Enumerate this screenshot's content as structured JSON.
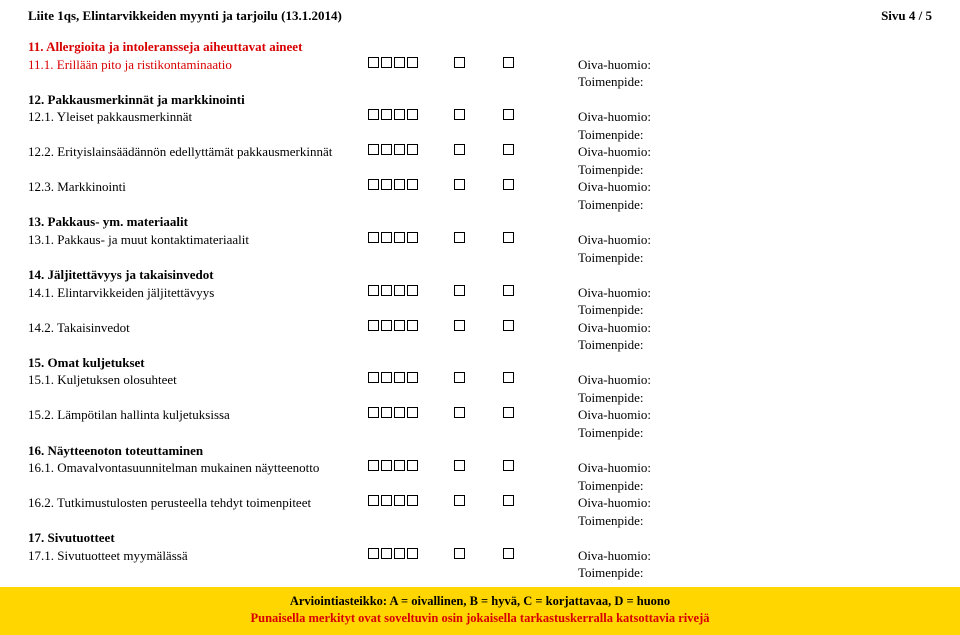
{
  "header": {
    "left": "Liite 1qs, Elintarvikkeiden myynti ja tarjoilu (13.1.2014)",
    "right": "Sivu 4 / 5"
  },
  "labels": {
    "oiva": "Oiva-huomio:",
    "tp": "Toimenpide:"
  },
  "sections": [
    {
      "type": "section",
      "red": true,
      "text": "11. Allergioita ja intoleransseja aiheuttavat aineet"
    },
    {
      "type": "item",
      "red": true,
      "text": "11.1. Erillään pito ja ristikontaminaatio"
    },
    {
      "type": "section",
      "red": false,
      "text": "12. Pakkausmerkinnät ja markkinointi"
    },
    {
      "type": "item",
      "red": false,
      "text": "12.1. Yleiset pakkausmerkinnät"
    },
    {
      "type": "item",
      "red": false,
      "text": "12.2. Erityislainsäädännön edellyttämät pakkausmerkinnät"
    },
    {
      "type": "item",
      "red": false,
      "text": "12.3. Markkinointi"
    },
    {
      "type": "section",
      "red": false,
      "text": "13. Pakkaus- ym. materiaalit"
    },
    {
      "type": "item",
      "red": false,
      "text": "13.1. Pakkaus- ja muut kontaktimateriaalit"
    },
    {
      "type": "section",
      "red": false,
      "text": "14. Jäljitettävyys ja takaisinvedot"
    },
    {
      "type": "item",
      "red": false,
      "text": "14.1. Elintarvikkeiden jäljitettävyys"
    },
    {
      "type": "item",
      "red": false,
      "text": "14.2. Takaisinvedot"
    },
    {
      "type": "section",
      "red": false,
      "text": "15. Omat kuljetukset"
    },
    {
      "type": "item",
      "red": false,
      "text": "15.1. Kuljetuksen olosuhteet"
    },
    {
      "type": "item",
      "red": false,
      "text": "15.2. Lämpötilan hallinta kuljetuksissa"
    },
    {
      "type": "section",
      "red": false,
      "text": "16. Näytteenoton toteuttaminen"
    },
    {
      "type": "item",
      "red": false,
      "text": "16.1. Omavalvontasuunnitelman mukainen näytteenotto"
    },
    {
      "type": "item",
      "red": false,
      "text": "16.2. Tutkimustulosten perusteella tehdyt toimenpiteet"
    },
    {
      "type": "section",
      "red": false,
      "text": "17. Sivutuotteet"
    },
    {
      "type": "item",
      "red": false,
      "text": "17.1. Sivutuotteet myymälässä"
    }
  ],
  "footer": {
    "line1": "Arviointiasteikko: A = oivallinen, B = hyvä, C = korjattavaa, D = huono",
    "line2": "Punaisella merkityt ovat soveltuvin osin jokaisella tarkastuskerralla katsottavia rivejä"
  }
}
